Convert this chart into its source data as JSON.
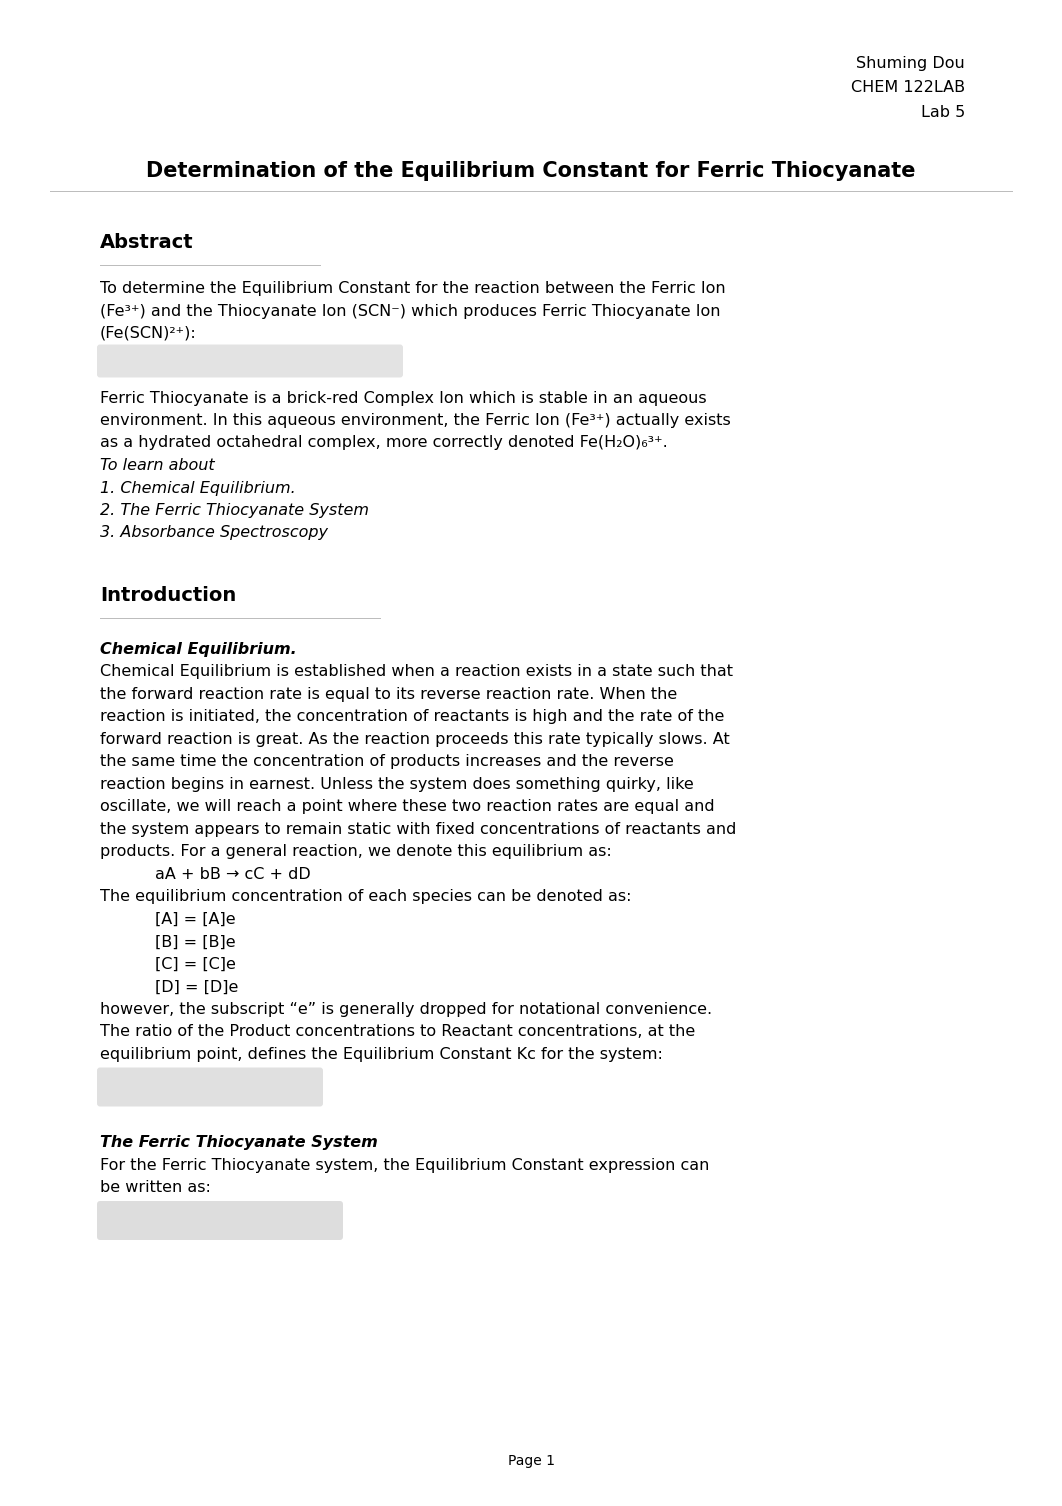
{
  "bg_color": "#ffffff",
  "header_right": [
    "Shuming Dou",
    "CHEM 122LAB",
    "Lab 5"
  ],
  "title": "Determination of the Equilibrium Constant for Ferric Thiocyanate",
  "abstract_heading": "Abstract",
  "abstract_body1_line1": "To determine the Equilibrium Constant for the reaction between the Ferric Ion",
  "abstract_body1_line2": "(Fe³⁺) and the Thiocyanate Ion (SCN⁻) which produces Ferric Thiocyanate Ion",
  "abstract_body1_line3": "(Fe(SCN)²⁺):",
  "abstract_body2_line1": "Ferric Thiocyanate is a brick-red Complex Ion which is stable in an aqueous",
  "abstract_body2_line2": "environment. In this aqueous environment, the Ferric Ion (Fe³⁺) actually exists",
  "abstract_body2_line3": "as a hydrated octahedral complex, more correctly denoted Fe(H₂O)₆³⁺.",
  "to_learn": "To learn about",
  "learn_items": [
    "1. Chemical Equilibrium.",
    "2. The Ferric Thiocyanate System",
    "3. Absorbance Spectroscopy"
  ],
  "intro_heading": "Introduction",
  "chem_eq_heading": "Chemical Equilibrium.",
  "chem_eq_body_lines": [
    "Chemical Equilibrium is established when a reaction exists in a state such that",
    "the forward reaction rate is equal to its reverse reaction rate. When the",
    "reaction is initiated, the concentration of reactants is high and the rate of the",
    "forward reaction is great. As the reaction proceeds this rate typically slows. At",
    "the same time the concentration of products increases and the reverse",
    "reaction begins in earnest. Unless the system does something quirky, like",
    "oscillate, we will reach a point where these two reaction rates are equal and",
    "the system appears to remain static with fixed concentrations of reactants and",
    "products. For a general reaction, we denote this equilibrium as:"
  ],
  "reaction_eq": "aA + bB → cC + dD",
  "eq_conc_intro": "The equilibrium concentration of each species can be denoted as:",
  "eq_conc_items": [
    "[A] = [A]e",
    "[B] = [B]e",
    "[C] = [C]e",
    "[D] = [D]e"
  ],
  "however_text_lines": [
    "however, the subscript “e” is generally dropped for notational convenience.",
    "The ratio of the Product concentrations to Reactant concentrations, at the",
    "equilibrium point, defines the Equilibrium Constant Kc for the system:"
  ],
  "ferric_system_heading": "The Ferric Thiocyanate System",
  "ferric_system_body_lines": [
    "For the Ferric Thiocyanate system, the Equilibrium Constant expression can",
    "be written as:"
  ],
  "page_num": "Page 1",
  "font_size_body": 11.5,
  "font_size_heading": 14,
  "font_size_title": 15,
  "font_size_header": 11.5
}
